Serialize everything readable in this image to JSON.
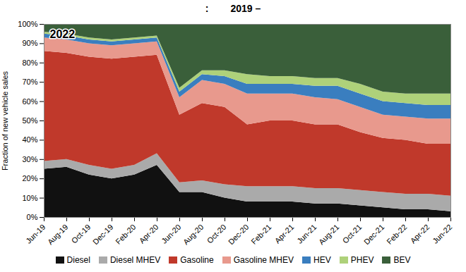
{
  "chart_data": {
    "type": "area",
    "stacked": true,
    "title": ":        2019 –",
    "ylabel": "Fraction of new vehicle sales",
    "annotations": [
      {
        "text": "2022"
      }
    ],
    "categories": [
      "Jun-19",
      "Aug-19",
      "Oct-19",
      "Dec-19",
      "Feb-20",
      "Apr-20",
      "Jun-20",
      "Aug-20",
      "Oct-20",
      "Dec-20",
      "Feb-21",
      "Apr-21",
      "Jun-21",
      "Aug-21",
      "Oct-21",
      "Dec-21",
      "Feb-22",
      "Apr-22",
      "Jun-22"
    ],
    "series": [
      {
        "name": "Diesel",
        "color": "#111111",
        "values": [
          25,
          26,
          22,
          20,
          22,
          27,
          13,
          13,
          10,
          8,
          8,
          8,
          7,
          7,
          6,
          5,
          4,
          4,
          3
        ]
      },
      {
        "name": "Diesel MHEV",
        "color": "#aaaaaa",
        "values": [
          4,
          4,
          5,
          5,
          5,
          6,
          5,
          6,
          7,
          8,
          8,
          8,
          8,
          8,
          8,
          8,
          8,
          8,
          8
        ]
      },
      {
        "name": "Gasoline",
        "color": "#c0392b",
        "values": [
          57,
          55,
          56,
          57,
          56,
          51,
          35,
          40,
          40,
          32,
          34,
          34,
          33,
          33,
          30,
          28,
          28,
          26,
          27
        ]
      },
      {
        "name": "Gasoline MHEV",
        "color": "#e8998d",
        "values": [
          7,
          7,
          7,
          7,
          7,
          7,
          9,
          12,
          12,
          16,
          14,
          14,
          14,
          13,
          13,
          12,
          12,
          13,
          13
        ]
      },
      {
        "name": "HEV",
        "color": "#3a7ebf",
        "values": [
          2,
          2,
          2,
          2,
          2,
          2,
          3,
          3,
          4,
          5,
          5,
          5,
          6,
          7,
          7,
          7,
          7,
          7,
          7
        ]
      },
      {
        "name": "PHEV",
        "color": "#aed17a",
        "values": [
          1,
          1,
          1,
          1,
          1,
          1,
          2,
          2,
          3,
          5,
          4,
          4,
          4,
          4,
          5,
          5,
          5,
          6,
          6
        ]
      },
      {
        "name": "BEV",
        "color": "#3a5f3a",
        "values": [
          4,
          5,
          7,
          8,
          7,
          6,
          33,
          24,
          24,
          26,
          27,
          27,
          28,
          28,
          31,
          35,
          36,
          36,
          36
        ]
      }
    ],
    "ylim": [
      0,
      100
    ],
    "yticks": [
      {
        "value": 0,
        "label": "0%"
      },
      {
        "value": 10,
        "label": "10%"
      },
      {
        "value": 20,
        "label": "20%"
      },
      {
        "value": 30,
        "label": "30%"
      },
      {
        "value": 40,
        "label": "40%"
      },
      {
        "value": 50,
        "label": "50%"
      },
      {
        "value": 60,
        "label": "60%"
      },
      {
        "value": 70,
        "label": "70%"
      },
      {
        "value": 80,
        "label": "80%"
      },
      {
        "value": 90,
        "label": "90%"
      },
      {
        "value": 100,
        "label": "100%"
      }
    ],
    "grid": true,
    "legend": "bottom"
  }
}
